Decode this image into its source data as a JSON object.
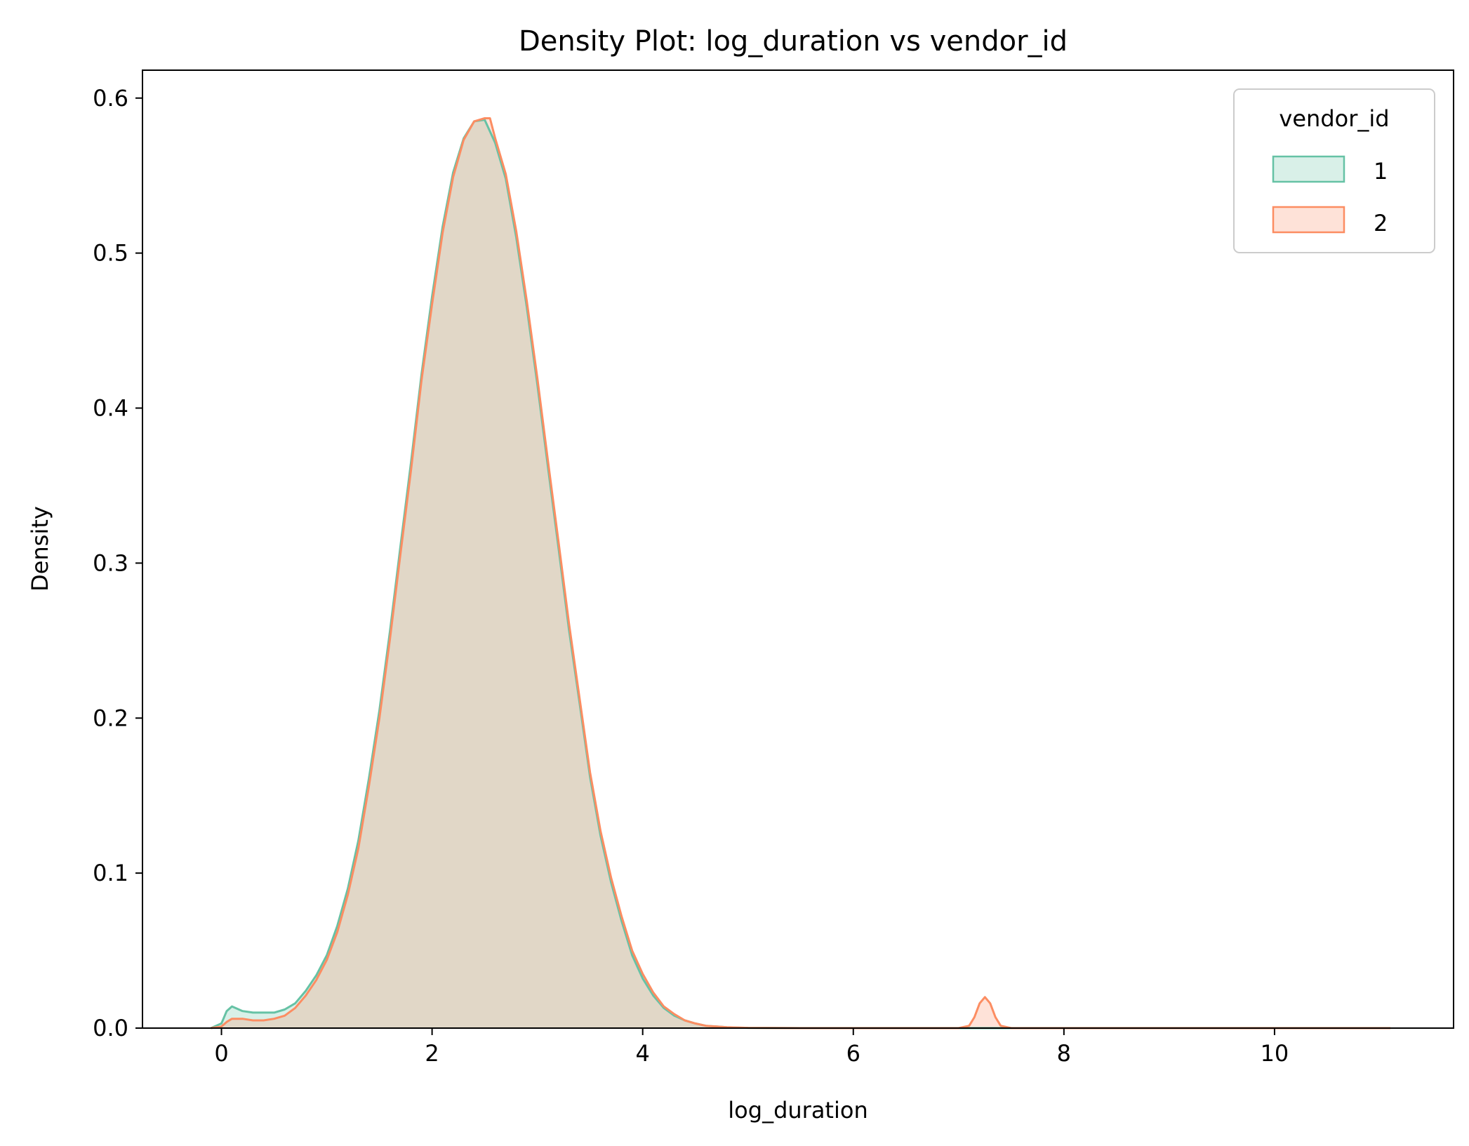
{
  "chart_data": {
    "type": "area",
    "title": "Density Plot: log_duration vs vendor_id",
    "xlabel": "log_duration",
    "ylabel": "Density",
    "xlim": [
      -0.75,
      11.7
    ],
    "ylim": [
      0,
      0.618
    ],
    "xticks": [
      0,
      2,
      4,
      6,
      8,
      10
    ],
    "yticks": [
      0.0,
      0.1,
      0.2,
      0.3,
      0.4,
      0.5,
      0.6
    ],
    "xtick_labels": [
      "0",
      "2",
      "4",
      "6",
      "8",
      "10"
    ],
    "ytick_labels": [
      "0.0",
      "0.1",
      "0.2",
      "0.3",
      "0.4",
      "0.5",
      "0.6"
    ],
    "grid": false,
    "legend": {
      "title": "vendor_id",
      "position": "top-right"
    },
    "series": [
      {
        "name": "1",
        "color": "#66c2a5",
        "x": [
          -0.1,
          0.0,
          0.05,
          0.1,
          0.2,
          0.3,
          0.4,
          0.5,
          0.6,
          0.7,
          0.8,
          0.9,
          1.0,
          1.1,
          1.2,
          1.3,
          1.4,
          1.5,
          1.6,
          1.7,
          1.8,
          1.9,
          2.0,
          2.1,
          2.2,
          2.3,
          2.4,
          2.5,
          2.6,
          2.7,
          2.8,
          2.9,
          3.0,
          3.1,
          3.2,
          3.3,
          3.4,
          3.5,
          3.6,
          3.7,
          3.8,
          3.9,
          4.0,
          4.1,
          4.2,
          4.3,
          4.4,
          4.5,
          4.6,
          4.8,
          5.0,
          5.5,
          6.0,
          7.0,
          8.0,
          9.0,
          10.0,
          11.1
        ],
        "y": [
          0.0,
          0.003,
          0.011,
          0.014,
          0.011,
          0.01,
          0.01,
          0.01,
          0.012,
          0.016,
          0.024,
          0.034,
          0.047,
          0.066,
          0.09,
          0.121,
          0.161,
          0.205,
          0.256,
          0.311,
          0.365,
          0.422,
          0.472,
          0.517,
          0.552,
          0.574,
          0.585,
          0.586,
          0.571,
          0.548,
          0.51,
          0.465,
          0.415,
          0.362,
          0.31,
          0.257,
          0.21,
          0.162,
          0.124,
          0.094,
          0.069,
          0.047,
          0.032,
          0.021,
          0.013,
          0.008,
          0.005,
          0.003,
          0.0015,
          0.0006,
          0.0002,
          0.0,
          0.0,
          0.0,
          0.0,
          0.0,
          0.0,
          0.0
        ]
      },
      {
        "name": "2",
        "color": "#fc8d62",
        "x": [
          -0.1,
          0.0,
          0.05,
          0.1,
          0.2,
          0.3,
          0.4,
          0.5,
          0.6,
          0.7,
          0.8,
          0.9,
          1.0,
          1.1,
          1.2,
          1.3,
          1.4,
          1.5,
          1.6,
          1.7,
          1.8,
          1.9,
          2.0,
          2.1,
          2.2,
          2.3,
          2.4,
          2.5,
          2.55,
          2.6,
          2.7,
          2.8,
          2.9,
          3.0,
          3.1,
          3.2,
          3.3,
          3.4,
          3.5,
          3.6,
          3.7,
          3.8,
          3.9,
          4.0,
          4.1,
          4.2,
          4.3,
          4.4,
          4.5,
          4.6,
          4.8,
          5.0,
          5.5,
          6.0,
          7.0,
          7.1,
          7.15,
          7.2,
          7.25,
          7.3,
          7.35,
          7.4,
          7.5,
          8.0,
          9.0,
          10.0,
          11.1
        ],
        "y": [
          0.0,
          0.001,
          0.004,
          0.006,
          0.006,
          0.005,
          0.005,
          0.006,
          0.008,
          0.013,
          0.021,
          0.031,
          0.044,
          0.062,
          0.086,
          0.116,
          0.156,
          0.2,
          0.251,
          0.306,
          0.36,
          0.418,
          0.467,
          0.513,
          0.549,
          0.573,
          0.585,
          0.587,
          0.587,
          0.574,
          0.551,
          0.514,
          0.469,
          0.419,
          0.366,
          0.314,
          0.261,
          0.213,
          0.165,
          0.127,
          0.097,
          0.072,
          0.05,
          0.035,
          0.023,
          0.014,
          0.009,
          0.005,
          0.003,
          0.0015,
          0.0006,
          0.0002,
          0.0,
          0.0,
          0.0,
          0.0015,
          0.007,
          0.016,
          0.02,
          0.016,
          0.007,
          0.0015,
          0.0,
          0.0,
          0.0,
          0.0,
          0.0
        ]
      }
    ]
  }
}
